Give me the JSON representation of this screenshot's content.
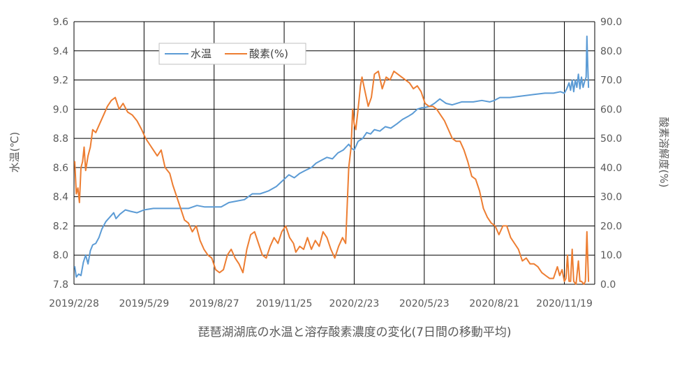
{
  "chart_data": {
    "type": "line",
    "title": "",
    "caption": "琵琶湖湖底の水温と溶存酸素濃度の変化(7日間の移動平均)",
    "y_left_label": "水温(℃)",
    "y_right_label": "酸素溶解度(%)",
    "y_left_range": [
      7.8,
      9.6
    ],
    "y_right_range": [
      0.0,
      90.0
    ],
    "y_left_ticks": [
      "7.8",
      "8.0",
      "8.2",
      "8.4",
      "8.6",
      "8.8",
      "9.0",
      "9.2",
      "9.4",
      "9.6"
    ],
    "y_right_ticks": [
      "0.0",
      "10.0",
      "20.0",
      "30.0",
      "40.0",
      "50.0",
      "60.0",
      "70.0",
      "80.0",
      "90.0"
    ],
    "x_ticks": [
      "2019/2/28",
      "2019/5/29",
      "2019/8/27",
      "2019/11/25",
      "2020/2/23",
      "2020/5/23",
      "2020/8/21",
      "2020/11/19"
    ],
    "x_range": [
      "2019/2/28",
      "2020/12/28"
    ],
    "grid": true,
    "legend_position": "top-left",
    "series": [
      {
        "name": "水温",
        "axis": "left",
        "color": "#5B9BD5",
        "points": [
          [
            "2019/3/1",
            7.92
          ],
          [
            "2019/3/3",
            7.85
          ],
          [
            "2019/3/6",
            7.87
          ],
          [
            "2019/3/9",
            7.86
          ],
          [
            "2019/3/12",
            7.95
          ],
          [
            "2019/3/15",
            8.0
          ],
          [
            "2019/3/18",
            7.94
          ],
          [
            "2019/3/21",
            8.03
          ],
          [
            "2019/3/24",
            8.07
          ],
          [
            "2019/3/28",
            8.08
          ],
          [
            "2019/4/1",
            8.12
          ],
          [
            "2019/4/5",
            8.18
          ],
          [
            "2019/4/10",
            8.23
          ],
          [
            "2019/4/15",
            8.26
          ],
          [
            "2019/4/20",
            8.29
          ],
          [
            "2019/4/23",
            8.25
          ],
          [
            "2019/4/28",
            8.28
          ],
          [
            "2019/5/5",
            8.31
          ],
          [
            "2019/5/12",
            8.3
          ],
          [
            "2019/5/20",
            8.29
          ],
          [
            "2019/5/29",
            8.31
          ],
          [
            "2019/6/10",
            8.32
          ],
          [
            "2019/6/25",
            8.32
          ],
          [
            "2019/7/10",
            8.32
          ],
          [
            "2019/7/25",
            8.32
          ],
          [
            "2019/8/5",
            8.34
          ],
          [
            "2019/8/15",
            8.33
          ],
          [
            "2019/8/27",
            8.33
          ],
          [
            "2019/9/5",
            8.33
          ],
          [
            "2019/9/15",
            8.36
          ],
          [
            "2019/9/25",
            8.37
          ],
          [
            "2019/10/5",
            8.38
          ],
          [
            "2019/10/15",
            8.42
          ],
          [
            "2019/10/25",
            8.42
          ],
          [
            "2019/11/5",
            8.44
          ],
          [
            "2019/11/15",
            8.47
          ],
          [
            "2019/11/25",
            8.52
          ],
          [
            "2019/12/1",
            8.55
          ],
          [
            "2019/12/8",
            8.53
          ],
          [
            "2019/12/15",
            8.56
          ],
          [
            "2019/12/22",
            8.58
          ],
          [
            "2019/12/30",
            8.6
          ],
          [
            "2020/1/5",
            8.63
          ],
          [
            "2020/1/12",
            8.65
          ],
          [
            "2020/1/19",
            8.67
          ],
          [
            "2020/1/26",
            8.66
          ],
          [
            "2020/2/2",
            8.7
          ],
          [
            "2020/2/9",
            8.72
          ],
          [
            "2020/2/16",
            8.76
          ],
          [
            "2020/2/20",
            8.73
          ],
          [
            "2020/2/23",
            8.72
          ],
          [
            "2020/2/28",
            8.78
          ],
          [
            "2020/3/5",
            8.8
          ],
          [
            "2020/3/10",
            8.84
          ],
          [
            "2020/3/15",
            8.83
          ],
          [
            "2020/3/20",
            8.86
          ],
          [
            "2020/3/27",
            8.85
          ],
          [
            "2020/4/3",
            8.88
          ],
          [
            "2020/4/10",
            8.87
          ],
          [
            "2020/4/18",
            8.9
          ],
          [
            "2020/4/25",
            8.93
          ],
          [
            "2020/5/2",
            8.95
          ],
          [
            "2020/5/8",
            8.97
          ],
          [
            "2020/5/14",
            9.0
          ],
          [
            "2020/5/20",
            9.01
          ],
          [
            "2020/5/23",
            9.01
          ],
          [
            "2020/5/30",
            9.02
          ],
          [
            "2020/6/5",
            9.04
          ],
          [
            "2020/6/12",
            9.07
          ],
          [
            "2020/6/20",
            9.04
          ],
          [
            "2020/6/28",
            9.03
          ],
          [
            "2020/7/10",
            9.05
          ],
          [
            "2020/7/25",
            9.05
          ],
          [
            "2020/8/5",
            9.06
          ],
          [
            "2020/8/15",
            9.05
          ],
          [
            "2020/8/21",
            9.06
          ],
          [
            "2020/8/28",
            9.08
          ],
          [
            "2020/9/10",
            9.08
          ],
          [
            "2020/9/25",
            9.09
          ],
          [
            "2020/10/10",
            9.1
          ],
          [
            "2020/10/25",
            9.11
          ],
          [
            "2020/11/5",
            9.11
          ],
          [
            "2020/11/14",
            9.12
          ],
          [
            "2020/11/19",
            9.11
          ],
          [
            "2020/11/22",
            9.14
          ],
          [
            "2020/11/25",
            9.18
          ],
          [
            "2020/11/27",
            9.13
          ],
          [
            "2020/11/29",
            9.2
          ],
          [
            "2020/12/1",
            9.12
          ],
          [
            "2020/12/3",
            9.2
          ],
          [
            "2020/12/5",
            9.15
          ],
          [
            "2020/12/7",
            9.24
          ],
          [
            "2020/12/9",
            9.14
          ],
          [
            "2020/12/11",
            9.22
          ],
          [
            "2020/12/13",
            9.15
          ],
          [
            "2020/12/15",
            9.19
          ],
          [
            "2020/12/17",
            9.22
          ],
          [
            "2020/12/18",
            9.5
          ],
          [
            "2020/12/19",
            9.3
          ],
          [
            "2020/12/20",
            9.15
          ]
        ]
      },
      {
        "name": "酸素(%)",
        "axis": "right",
        "color": "#ED7D31",
        "points": [
          [
            "2019/3/1",
            42
          ],
          [
            "2019/3/3",
            31
          ],
          [
            "2019/3/5",
            33
          ],
          [
            "2019/3/7",
            28
          ],
          [
            "2019/3/9",
            40
          ],
          [
            "2019/3/11",
            42
          ],
          [
            "2019/3/13",
            47
          ],
          [
            "2019/3/15",
            39
          ],
          [
            "2019/3/18",
            44
          ],
          [
            "2019/3/21",
            47
          ],
          [
            "2019/3/24",
            53
          ],
          [
            "2019/3/28",
            52
          ],
          [
            "2019/4/2",
            55
          ],
          [
            "2019/4/7",
            58
          ],
          [
            "2019/4/12",
            61
          ],
          [
            "2019/4/17",
            63
          ],
          [
            "2019/4/22",
            64
          ],
          [
            "2019/4/27",
            60
          ],
          [
            "2019/5/2",
            62
          ],
          [
            "2019/5/8",
            59
          ],
          [
            "2019/5/14",
            58
          ],
          [
            "2019/5/20",
            56
          ],
          [
            "2019/5/26",
            53
          ],
          [
            "2019/5/31",
            50
          ],
          [
            "2019/6/5",
            48
          ],
          [
            "2019/6/10",
            46
          ],
          [
            "2019/6/15",
            44
          ],
          [
            "2019/6/20",
            46
          ],
          [
            "2019/6/25",
            40
          ],
          [
            "2019/7/1",
            38
          ],
          [
            "2019/7/5",
            34
          ],
          [
            "2019/7/10",
            30
          ],
          [
            "2019/7/15",
            26
          ],
          [
            "2019/7/20",
            22
          ],
          [
            "2019/7/25",
            21
          ],
          [
            "2019/7/30",
            18
          ],
          [
            "2019/8/4",
            20
          ],
          [
            "2019/8/9",
            15
          ],
          [
            "2019/8/14",
            12
          ],
          [
            "2019/8/19",
            10
          ],
          [
            "2019/8/24",
            9
          ],
          [
            "2019/8/29",
            5
          ],
          [
            "2019/9/3",
            4
          ],
          [
            "2019/9/8",
            5
          ],
          [
            "2019/9/13",
            10
          ],
          [
            "2019/9/18",
            12
          ],
          [
            "2019/9/23",
            9
          ],
          [
            "2019/9/28",
            7
          ],
          [
            "2019/10/3",
            4
          ],
          [
            "2019/10/8",
            12
          ],
          [
            "2019/10/13",
            17
          ],
          [
            "2019/10/18",
            18
          ],
          [
            "2019/10/23",
            14
          ],
          [
            "2019/10/28",
            10
          ],
          [
            "2019/11/2",
            9
          ],
          [
            "2019/11/7",
            13
          ],
          [
            "2019/11/12",
            16
          ],
          [
            "2019/11/17",
            14
          ],
          [
            "2019/11/22",
            18
          ],
          [
            "2019/11/27",
            20
          ],
          [
            "2019/12/2",
            16
          ],
          [
            "2019/12/7",
            14
          ],
          [
            "2019/12/10",
            11
          ],
          [
            "2019/12/15",
            13
          ],
          [
            "2019/12/20",
            12
          ],
          [
            "2019/12/25",
            16
          ],
          [
            "2019/12/30",
            12
          ],
          [
            "2020/1/4",
            15
          ],
          [
            "2020/1/9",
            13
          ],
          [
            "2020/1/14",
            18
          ],
          [
            "2020/1/19",
            16
          ],
          [
            "2020/1/24",
            12
          ],
          [
            "2020/1/29",
            9
          ],
          [
            "2020/2/3",
            13
          ],
          [
            "2020/2/8",
            16
          ],
          [
            "2020/2/12",
            14
          ],
          [
            "2020/2/16",
            40
          ],
          [
            "2020/2/19",
            47
          ],
          [
            "2020/2/21",
            60
          ],
          [
            "2020/2/23",
            55
          ],
          [
            "2020/2/25",
            53
          ],
          [
            "2020/2/28",
            60
          ],
          [
            "2020/3/2",
            68
          ],
          [
            "2020/3/4",
            71
          ],
          [
            "2020/3/8",
            66
          ],
          [
            "2020/3/12",
            61
          ],
          [
            "2020/3/16",
            64
          ],
          [
            "2020/3/20",
            72
          ],
          [
            "2020/3/25",
            73
          ],
          [
            "2020/3/30",
            67
          ],
          [
            "2020/4/4",
            71
          ],
          [
            "2020/4/9",
            70
          ],
          [
            "2020/4/14",
            73
          ],
          [
            "2020/4/19",
            72
          ],
          [
            "2020/4/24",
            71
          ],
          [
            "2020/4/29",
            70
          ],
          [
            "2020/5/4",
            69
          ],
          [
            "2020/5/9",
            67
          ],
          [
            "2020/5/14",
            68
          ],
          [
            "2020/5/19",
            66
          ],
          [
            "2020/5/24",
            62
          ],
          [
            "2020/5/29",
            61
          ],
          [
            "2020/6/3",
            61
          ],
          [
            "2020/6/8",
            60
          ],
          [
            "2020/6/13",
            58
          ],
          [
            "2020/6/18",
            56
          ],
          [
            "2020/6/23",
            53
          ],
          [
            "2020/6/28",
            50
          ],
          [
            "2020/7/3",
            49
          ],
          [
            "2020/7/8",
            49
          ],
          [
            "2020/7/13",
            46
          ],
          [
            "2020/7/18",
            42
          ],
          [
            "2020/7/23",
            37
          ],
          [
            "2020/7/28",
            36
          ],
          [
            "2020/8/2",
            32
          ],
          [
            "2020/8/7",
            26
          ],
          [
            "2020/8/12",
            23
          ],
          [
            "2020/8/17",
            21
          ],
          [
            "2020/8/22",
            20
          ],
          [
            "2020/8/27",
            17
          ],
          [
            "2020/9/1",
            20
          ],
          [
            "2020/9/6",
            20
          ],
          [
            "2020/9/11",
            16
          ],
          [
            "2020/9/16",
            14
          ],
          [
            "2020/9/21",
            12
          ],
          [
            "2020/9/26",
            8
          ],
          [
            "2020/10/1",
            9
          ],
          [
            "2020/10/6",
            7
          ],
          [
            "2020/10/11",
            7
          ],
          [
            "2020/10/16",
            6
          ],
          [
            "2020/10/21",
            4
          ],
          [
            "2020/10/26",
            3
          ],
          [
            "2020/10/31",
            2
          ],
          [
            "2020/11/5",
            2
          ],
          [
            "2020/11/10",
            6
          ],
          [
            "2020/11/13",
            3
          ],
          [
            "2020/11/16",
            5
          ],
          [
            "2020/11/19",
            1
          ],
          [
            "2020/11/21",
            2
          ],
          [
            "2020/11/23",
            10
          ],
          [
            "2020/11/25",
            1
          ],
          [
            "2020/11/27",
            1
          ],
          [
            "2020/11/29",
            12
          ],
          [
            "2020/12/1",
            1
          ],
          [
            "2020/12/4",
            0
          ],
          [
            "2020/12/7",
            8
          ],
          [
            "2020/12/9",
            1
          ],
          [
            "2020/12/11",
            1
          ],
          [
            "2020/12/14",
            0
          ],
          [
            "2020/12/16",
            1
          ],
          [
            "2020/12/18",
            18
          ],
          [
            "2020/12/19",
            9
          ],
          [
            "2020/12/20",
            1
          ]
        ]
      }
    ]
  }
}
